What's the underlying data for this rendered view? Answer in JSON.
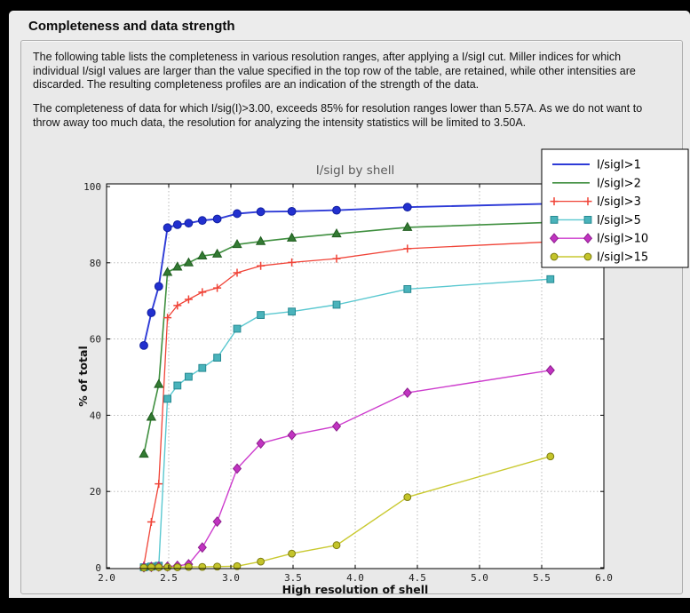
{
  "title": "Completeness and data strength",
  "paragraphs": [
    "The following table lists the completeness in various resolution ranges, after applying a I/sigI cut. Miller indices for which individual I/sigI values are larger than the value specified in the top row of the table, are retained, while other intensities are discarded. The resulting completeness profiles are an indication of the strength of the data.",
    "The completeness of data for which I/sig(I)>3.00, exceeds  85% for resolution ranges lower than 5.57A. As we do not want to throw away too much data, the resolution for analyzing the intensity statistics will be limited to 3.50A."
  ],
  "colors": {
    "page_bg": "#000000",
    "window_bg": "#ececec",
    "panel_bg": "#e9e9e9",
    "panel_border": "#aeaeae",
    "plot_bg": "#ffffff",
    "axis_color": "#000000",
    "grid_color": "#b3b3b3",
    "chart_title_color": "#5a5a5a",
    "tick_label_color": "#222222",
    "axis_label_color": "#111111",
    "legend_bg": "#ffffff",
    "legend_border": "#000000"
  },
  "chart_data": {
    "type": "line",
    "title": "I/sigI by shell",
    "xlabel": "High resolution of shell",
    "ylabel": "% of total",
    "xlim": [
      2.0,
      6.0
    ],
    "ylim": [
      0,
      100
    ],
    "xticks": [
      2.0,
      2.5,
      3.0,
      3.5,
      4.0,
      4.5,
      5.0,
      5.5,
      6.0
    ],
    "yticks": [
      0,
      20,
      40,
      60,
      80,
      100
    ],
    "grid": true,
    "legend_position": "upper right",
    "x": [
      2.3,
      2.36,
      2.42,
      2.49,
      2.57,
      2.66,
      2.77,
      2.89,
      3.05,
      3.24,
      3.49,
      3.85,
      4.42,
      5.57
    ],
    "series": [
      {
        "name": "I/sigI>1",
        "color": "#2e3bd7",
        "marker": "circle",
        "marker_fill": "#2230cf",
        "marker_edge": "#101fa0",
        "line_width": 1.9,
        "marker_size": 4.4,
        "legend_marker": false,
        "values": [
          58.3,
          66.9,
          73.8,
          89.2,
          90.0,
          90.4,
          91.1,
          91.5,
          92.9,
          93.4,
          93.5,
          93.8,
          94.6,
          95.5
        ]
      },
      {
        "name": "I/sigI>2",
        "color": "#3f8f3f",
        "marker": "triangle",
        "marker_fill": "#337a33",
        "marker_edge": "#1e5c1e",
        "line_width": 1.6,
        "marker_size": 4.8,
        "legend_marker": false,
        "values": [
          29.8,
          39.5,
          48.1,
          77.5,
          78.9,
          80.0,
          81.8,
          82.3,
          84.8,
          85.6,
          86.5,
          87.6,
          89.3,
          90.6
        ]
      },
      {
        "name": "I/sigI>3",
        "color": "#f04337",
        "marker": "plus",
        "marker_fill": "none",
        "marker_edge": "#f04337",
        "line_width": 1.3,
        "marker_size": 4.5,
        "legend_marker": true,
        "values": [
          0.6,
          12.0,
          22.0,
          65.6,
          68.8,
          70.4,
          72.3,
          73.4,
          77.4,
          79.2,
          80.1,
          81.1,
          83.7,
          85.5
        ]
      },
      {
        "name": "I/sigI>5",
        "color": "#5ac8d0",
        "marker": "square",
        "marker_fill": "#4ab3bb",
        "marker_edge": "#268a92",
        "line_width": 1.4,
        "marker_size": 3.9,
        "legend_marker": true,
        "values": [
          0.1,
          0.3,
          0.5,
          44.3,
          47.8,
          50.1,
          52.4,
          55.1,
          62.7,
          66.3,
          67.2,
          69.0,
          73.1,
          75.7
        ]
      },
      {
        "name": "I/sigI>10",
        "color": "#cd3ccd",
        "marker": "diamond",
        "marker_fill": "#c133c1",
        "marker_edge": "#8d1f8d",
        "line_width": 1.4,
        "marker_size": 5.2,
        "legend_marker": true,
        "values": [
          0.1,
          0.2,
          0.3,
          0.3,
          0.5,
          0.9,
          5.3,
          12.1,
          26.0,
          32.6,
          34.8,
          37.1,
          45.9,
          51.8
        ]
      },
      {
        "name": "I/sigI>15",
        "color": "#c9c930",
        "marker": "circle",
        "marker_fill": "#c4c42a",
        "marker_edge": "#7d7d10",
        "line_width": 1.4,
        "marker_size": 3.9,
        "legend_marker": true,
        "values": [
          0.0,
          0.1,
          0.1,
          0.1,
          0.1,
          0.2,
          0.2,
          0.3,
          0.4,
          1.6,
          3.7,
          5.9,
          18.5,
          29.2
        ]
      }
    ]
  }
}
